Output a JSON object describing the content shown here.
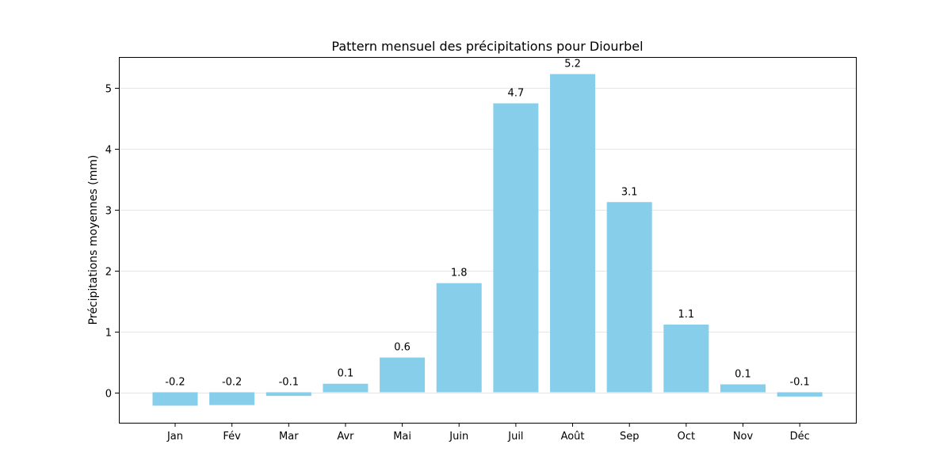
{
  "chart_data": {
    "type": "bar",
    "title": "Pattern mensuel des précipitations pour Diourbel",
    "xlabel": "",
    "ylabel": "Précipitations moyennes (mm)",
    "categories": [
      "Jan",
      "Fév",
      "Mar",
      "Avr",
      "Mai",
      "Juin",
      "Juil",
      "Août",
      "Sep",
      "Oct",
      "Nov",
      "Déc"
    ],
    "values": [
      -0.22,
      -0.21,
      -0.06,
      0.14,
      0.57,
      1.79,
      4.74,
      5.22,
      3.12,
      1.11,
      0.13,
      -0.07
    ],
    "value_labels": [
      "-0.2",
      "-0.2",
      "-0.1",
      "0.1",
      "0.6",
      "1.8",
      "4.7",
      "5.2",
      "3.1",
      "1.1",
      "0.1",
      "-0.1"
    ],
    "yticks": [
      0,
      1,
      2,
      3,
      4,
      5
    ],
    "ylim": [
      -0.5,
      5.5
    ],
    "grid": "y",
    "bar_color": "#87CEEB"
  }
}
